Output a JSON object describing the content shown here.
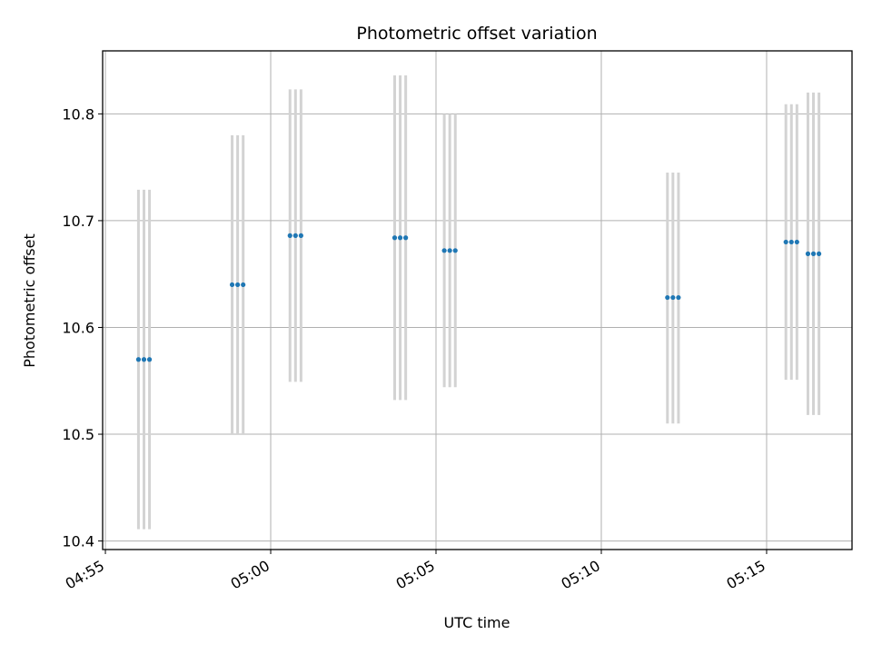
{
  "chart_data": {
    "type": "scatter",
    "title": "Photometric offset variation",
    "xlabel": "UTC time",
    "ylabel": "Photometric offset",
    "x_ticks": [
      "04:55",
      "05:00",
      "05:05",
      "05:10",
      "05:15"
    ],
    "y_ticks": [
      "10.4",
      "10.5",
      "10.6",
      "10.7",
      "10.8"
    ],
    "xlim": [
      "04:54:55",
      "05:17:35"
    ],
    "ylim": [
      10.392,
      10.859
    ],
    "grid": true,
    "marker_color": "#1f77b4",
    "errorbar_color": "#d3d3d3",
    "series": [
      {
        "points": [
          {
            "x": "04:56:00",
            "y": 10.57,
            "yerr_low": 10.411,
            "yerr_high": 10.729
          },
          {
            "x": "04:56:10",
            "y": 10.57,
            "yerr_low": 10.411,
            "yerr_high": 10.729
          },
          {
            "x": "04:56:20",
            "y": 10.57,
            "yerr_low": 10.411,
            "yerr_high": 10.729
          },
          {
            "x": "04:58:50",
            "y": 10.64,
            "yerr_low": 10.5,
            "yerr_high": 10.78
          },
          {
            "x": "04:59:00",
            "y": 10.64,
            "yerr_low": 10.5,
            "yerr_high": 10.78
          },
          {
            "x": "04:59:10",
            "y": 10.64,
            "yerr_low": 10.5,
            "yerr_high": 10.78
          },
          {
            "x": "05:00:35",
            "y": 10.686,
            "yerr_low": 10.549,
            "yerr_high": 10.823
          },
          {
            "x": "05:00:45",
            "y": 10.686,
            "yerr_low": 10.549,
            "yerr_high": 10.823
          },
          {
            "x": "05:00:55",
            "y": 10.686,
            "yerr_low": 10.549,
            "yerr_high": 10.823
          },
          {
            "x": "05:03:45",
            "y": 10.684,
            "yerr_low": 10.532,
            "yerr_high": 10.836
          },
          {
            "x": "05:03:55",
            "y": 10.684,
            "yerr_low": 10.532,
            "yerr_high": 10.836
          },
          {
            "x": "05:04:05",
            "y": 10.684,
            "yerr_low": 10.532,
            "yerr_high": 10.836
          },
          {
            "x": "05:05:15",
            "y": 10.672,
            "yerr_low": 10.544,
            "yerr_high": 10.8
          },
          {
            "x": "05:05:25",
            "y": 10.672,
            "yerr_low": 10.544,
            "yerr_high": 10.8
          },
          {
            "x": "05:05:35",
            "y": 10.672,
            "yerr_low": 10.544,
            "yerr_high": 10.8
          },
          {
            "x": "05:12:00",
            "y": 10.628,
            "yerr_low": 10.51,
            "yerr_high": 10.745
          },
          {
            "x": "05:12:10",
            "y": 10.628,
            "yerr_low": 10.51,
            "yerr_high": 10.745
          },
          {
            "x": "05:12:20",
            "y": 10.628,
            "yerr_low": 10.51,
            "yerr_high": 10.745
          },
          {
            "x": "05:15:35",
            "y": 10.68,
            "yerr_low": 10.551,
            "yerr_high": 10.809
          },
          {
            "x": "05:15:45",
            "y": 10.68,
            "yerr_low": 10.551,
            "yerr_high": 10.809
          },
          {
            "x": "05:15:55",
            "y": 10.68,
            "yerr_low": 10.551,
            "yerr_high": 10.809
          },
          {
            "x": "05:16:15",
            "y": 10.669,
            "yerr_low": 10.518,
            "yerr_high": 10.82
          },
          {
            "x": "05:16:25",
            "y": 10.669,
            "yerr_low": 10.518,
            "yerr_high": 10.82
          },
          {
            "x": "05:16:35",
            "y": 10.669,
            "yerr_low": 10.518,
            "yerr_high": 10.82
          }
        ]
      }
    ]
  }
}
